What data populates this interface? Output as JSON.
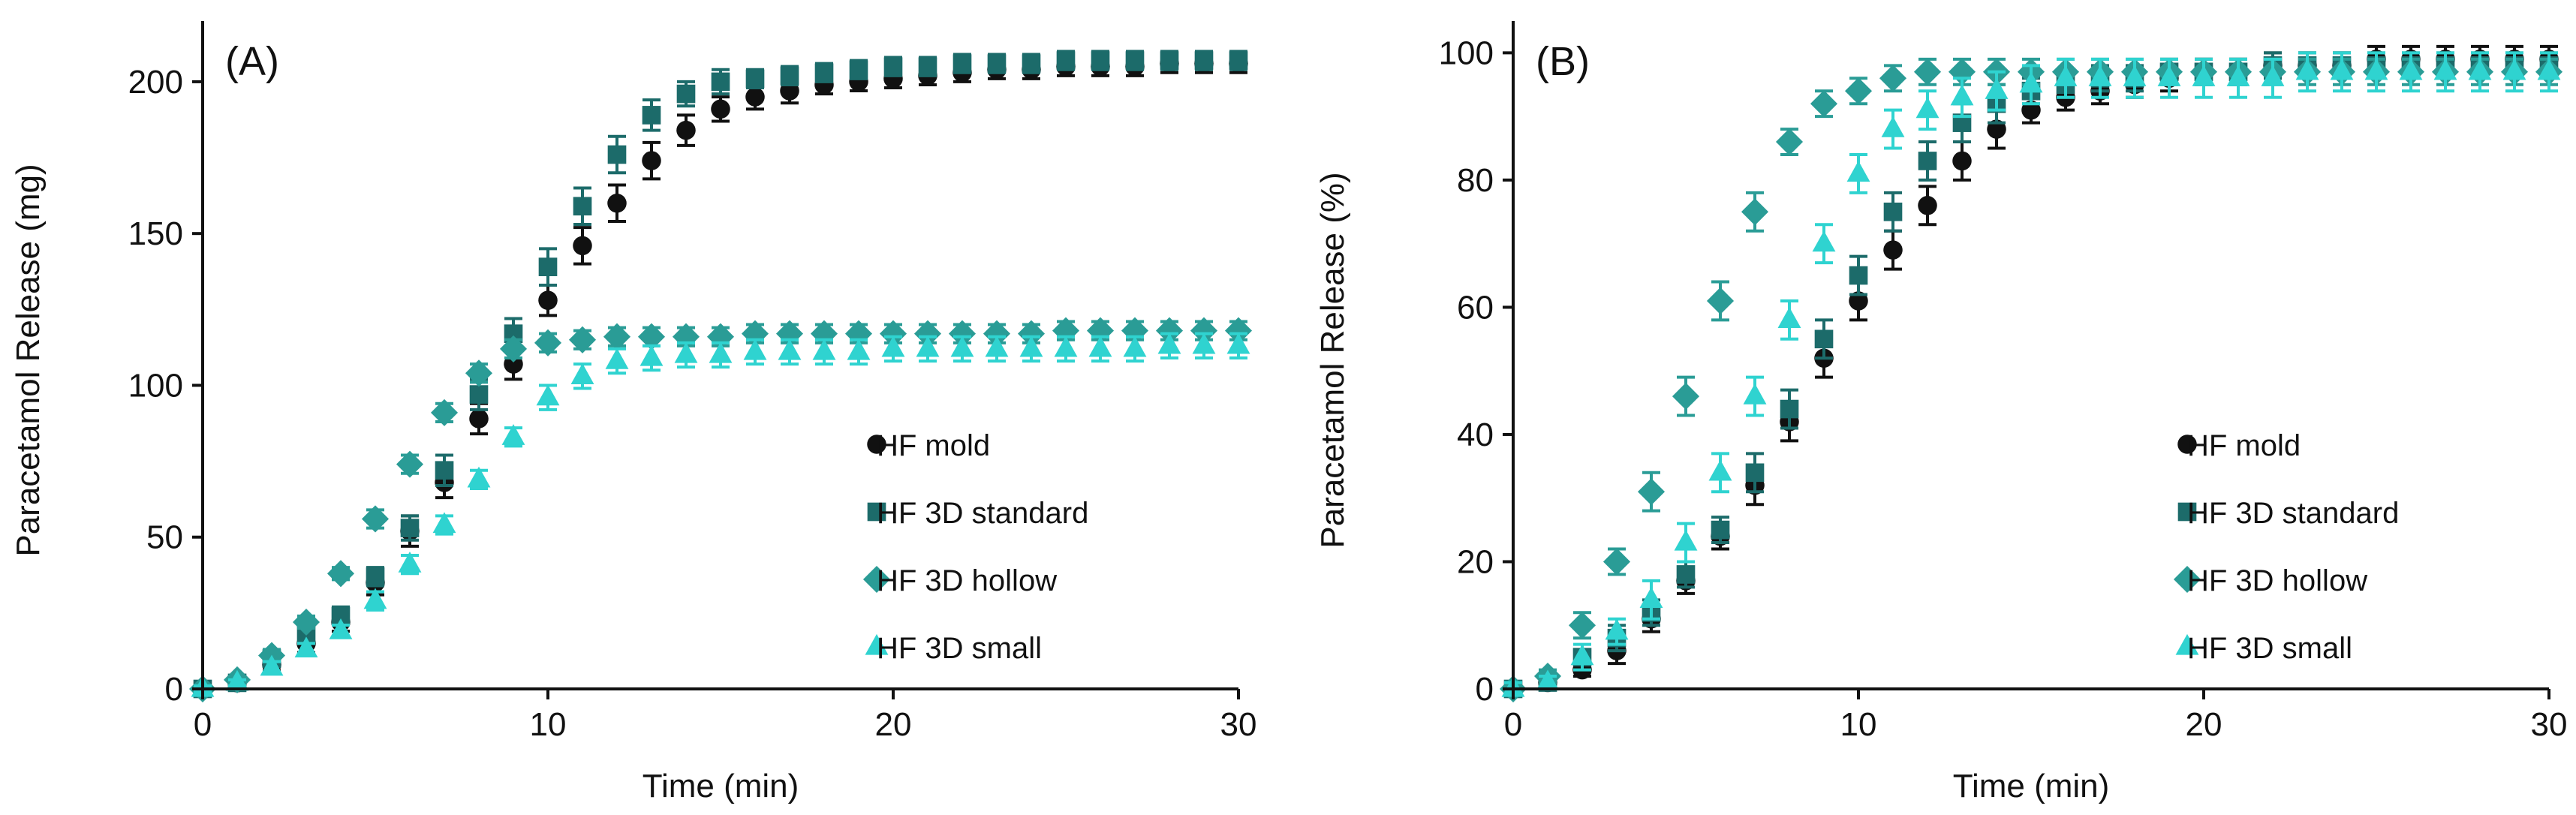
{
  "chart_data": [
    {
      "type": "scatter",
      "panel_label": "(A)",
      "title": "",
      "xlabel": "Time (min)",
      "ylabel": "Paracetamol Release (mg)",
      "xlim": [
        0,
        30
      ],
      "ylim": [
        0,
        220
      ],
      "x_ticks": [
        "0",
        "10",
        "20",
        "30"
      ],
      "y_ticks": [
        "0",
        "50",
        "100",
        "150",
        "200"
      ],
      "x_tick_values": [
        0,
        10,
        20,
        30
      ],
      "y_tick_values": [
        0,
        50,
        100,
        150,
        200
      ],
      "grid": false,
      "legend_position": "bottom-right",
      "x": [
        0,
        1,
        2,
        3,
        4,
        5,
        6,
        7,
        8,
        9,
        10,
        11,
        12,
        13,
        14,
        15,
        16,
        17,
        18,
        19,
        20,
        21,
        22,
        23,
        24,
        25,
        26,
        27,
        28,
        29,
        30
      ],
      "series": [
        {
          "name": "HF mold",
          "marker": "circle",
          "color": "#111111",
          "values": [
            0,
            2,
            8,
            15,
            22,
            35,
            52,
            68,
            89,
            107,
            128,
            146,
            160,
            174,
            184,
            191,
            195,
            197,
            199,
            200,
            201,
            202,
            203,
            204,
            204,
            205,
            205,
            205,
            206,
            206,
            206
          ],
          "errors": [
            1,
            1,
            2,
            3,
            3,
            4,
            5,
            5,
            5,
            5,
            5,
            6,
            6,
            6,
            5,
            4,
            4,
            4,
            3,
            3,
            3,
            3,
            3,
            3,
            3,
            3,
            3,
            3,
            3,
            3,
            3
          ]
        },
        {
          "name": "HF 3D standard",
          "marker": "square",
          "color": "#1c6b6a",
          "values": [
            0,
            2,
            10,
            18,
            24,
            37,
            53,
            72,
            97,
            117,
            139,
            159,
            176,
            189,
            196,
            200,
            201,
            202,
            203,
            204,
            205,
            205,
            206,
            206,
            206,
            207,
            207,
            207,
            207,
            207,
            207
          ],
          "errors": [
            1,
            1,
            2,
            3,
            3,
            3,
            4,
            5,
            5,
            5,
            6,
            6,
            6,
            5,
            4,
            4,
            3,
            3,
            3,
            3,
            3,
            3,
            3,
            3,
            3,
            3,
            3,
            3,
            3,
            3,
            3
          ]
        },
        {
          "name": "HF 3D hollow",
          "marker": "diamond",
          "color": "#2a9c96",
          "values": [
            0,
            3,
            11,
            22,
            38,
            56,
            74,
            91,
            104,
            112,
            114,
            115,
            116,
            116,
            116,
            116,
            117,
            117,
            117,
            117,
            117,
            117,
            117,
            117,
            117,
            118,
            118,
            118,
            118,
            118,
            118
          ],
          "errors": [
            1,
            1,
            2,
            2,
            2,
            3,
            3,
            3,
            3,
            3,
            3,
            3,
            3,
            3,
            3,
            3,
            3,
            3,
            3,
            3,
            3,
            3,
            3,
            3,
            3,
            3,
            3,
            3,
            3,
            3,
            3
          ]
        },
        {
          "name": "HF 3D small",
          "marker": "triangle",
          "color": "#2fd3d0",
          "values": [
            0,
            2,
            7,
            13,
            19,
            29,
            41,
            54,
            69,
            83,
            96,
            103,
            108,
            109,
            110,
            110,
            111,
            111,
            111,
            111,
            112,
            112,
            112,
            112,
            112,
            112,
            112,
            112,
            113,
            113,
            113
          ],
          "errors": [
            1,
            1,
            2,
            2,
            2,
            3,
            3,
            3,
            3,
            3,
            4,
            4,
            4,
            4,
            4,
            4,
            4,
            4,
            4,
            4,
            4,
            4,
            4,
            4,
            4,
            4,
            4,
            4,
            4,
            4,
            4
          ]
        }
      ]
    },
    {
      "type": "scatter",
      "panel_label": "(B)",
      "title": "",
      "xlabel": "Time (min)",
      "ylabel": "Paracetamol Release (%)",
      "xlim": [
        0,
        30
      ],
      "ylim": [
        0,
        105
      ],
      "x_ticks": [
        "0",
        "10",
        "20",
        "30"
      ],
      "y_ticks": [
        "0",
        "20",
        "40",
        "60",
        "80",
        "100"
      ],
      "x_tick_values": [
        0,
        10,
        20,
        30
      ],
      "y_tick_values": [
        0,
        20,
        40,
        60,
        80,
        100
      ],
      "grid": false,
      "legend_position": "bottom-right",
      "x": [
        0,
        1,
        2,
        3,
        4,
        5,
        6,
        7,
        8,
        9,
        10,
        11,
        12,
        13,
        14,
        15,
        16,
        17,
        18,
        19,
        20,
        21,
        22,
        23,
        24,
        25,
        26,
        27,
        28,
        29,
        30
      ],
      "series": [
        {
          "name": "HF mold",
          "marker": "circle",
          "color": "#111111",
          "values": [
            0,
            1,
            3,
            6,
            11,
            17,
            24,
            32,
            42,
            52,
            61,
            69,
            76,
            83,
            88,
            91,
            93,
            94,
            95,
            96,
            97,
            97,
            98,
            98,
            98,
            99,
            99,
            99,
            99,
            99,
            99
          ],
          "errors": [
            1,
            1,
            1,
            2,
            2,
            2,
            2,
            3,
            3,
            3,
            3,
            3,
            3,
            3,
            3,
            2,
            2,
            2,
            2,
            2,
            2,
            2,
            2,
            2,
            2,
            2,
            2,
            2,
            2,
            2,
            2
          ]
        },
        {
          "name": "HF 3D standard",
          "marker": "square",
          "color": "#1c6b6a",
          "values": [
            0,
            1,
            5,
            8,
            12,
            18,
            25,
            34,
            44,
            55,
            65,
            75,
            83,
            89,
            92,
            94,
            95,
            96,
            96,
            97,
            97,
            97,
            98,
            98,
            98,
            98,
            98,
            98,
            98,
            98,
            98
          ],
          "errors": [
            1,
            1,
            1,
            2,
            2,
            2,
            2,
            3,
            3,
            3,
            3,
            3,
            3,
            3,
            3,
            2,
            2,
            2,
            2,
            2,
            2,
            2,
            2,
            2,
            2,
            2,
            2,
            2,
            2,
            2,
            2
          ]
        },
        {
          "name": "HF 3D hollow",
          "marker": "diamond",
          "color": "#2a9c96",
          "values": [
            0,
            2,
            10,
            20,
            31,
            46,
            61,
            75,
            86,
            92,
            94,
            96,
            97,
            97,
            97,
            97,
            97,
            97,
            97,
            97,
            97,
            97,
            97,
            97,
            97,
            97,
            97,
            97,
            97,
            97,
            97
          ],
          "errors": [
            1,
            1,
            2,
            2,
            3,
            3,
            3,
            3,
            2,
            2,
            2,
            2,
            2,
            2,
            2,
            2,
            2,
            2,
            2,
            2,
            2,
            2,
            2,
            2,
            2,
            2,
            2,
            2,
            2,
            2,
            2
          ]
        },
        {
          "name": "HF 3D small",
          "marker": "triangle",
          "color": "#2fd3d0",
          "values": [
            0,
            1,
            5,
            9,
            14,
            23,
            34,
            46,
            58,
            70,
            81,
            88,
            91,
            93,
            94,
            95,
            96,
            96,
            96,
            96,
            96,
            96,
            96,
            97,
            97,
            97,
            97,
            97,
            97,
            97,
            97
          ],
          "errors": [
            1,
            1,
            2,
            2,
            3,
            3,
            3,
            3,
            3,
            3,
            3,
            3,
            3,
            3,
            3,
            3,
            3,
            3,
            3,
            3,
            3,
            3,
            3,
            3,
            3,
            3,
            3,
            3,
            3,
            3,
            3
          ]
        }
      ]
    }
  ]
}
